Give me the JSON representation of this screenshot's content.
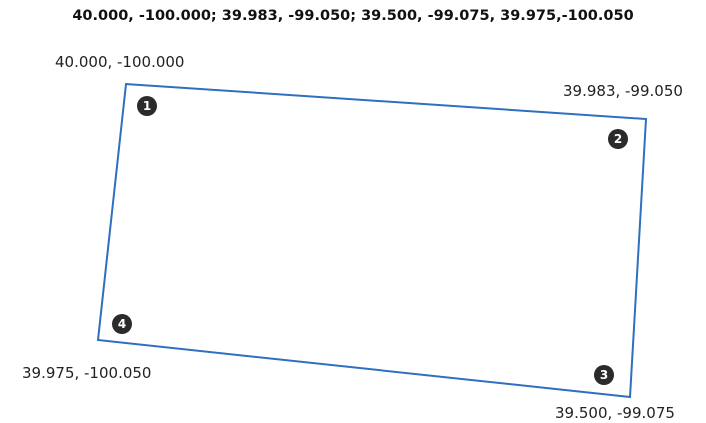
{
  "header": {
    "coordinates_text": "40.000, -100.000; 39.983, -99.050; 39.500, -99.075, 39.975,-100.050"
  },
  "shape": {
    "stroke_color": "#2f6fbf"
  },
  "corners": [
    {
      "number": "1",
      "label": "40.000, -100.000"
    },
    {
      "number": "2",
      "label": "39.983, -99.050"
    },
    {
      "number": "3",
      "label": "39.500, -99.075"
    },
    {
      "number": "4",
      "label": "39.975, -100.050"
    }
  ]
}
